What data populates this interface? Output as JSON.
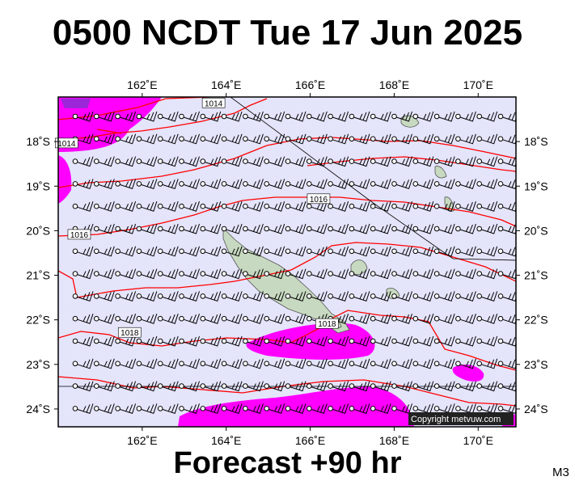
{
  "header": {
    "title": "0500 NCDT Tue 17 Jun 2025"
  },
  "footer": {
    "subtitle": "Forecast +90 hr",
    "model": "M3"
  },
  "credit": "Copyright metvuw.com",
  "map": {
    "lon_min": 160.0,
    "lon_max": 170.9,
    "lat_min": -24.4,
    "lat_max": -17.0,
    "lon_ticks": [
      {
        "value": 162,
        "label": "162˚E"
      },
      {
        "value": 164,
        "label": "164˚E"
      },
      {
        "value": 166,
        "label": "166˚E"
      },
      {
        "value": 168,
        "label": "168˚E"
      },
      {
        "value": 170,
        "label": "170˚E"
      }
    ],
    "lat_ticks": [
      {
        "value": -18,
        "label": "18˚S"
      },
      {
        "value": -19,
        "label": "19˚S"
      },
      {
        "value": -20,
        "label": "20˚S"
      },
      {
        "value": -21,
        "label": "21˚S"
      },
      {
        "value": -22,
        "label": "22˚S"
      },
      {
        "value": -23,
        "label": "23˚S"
      },
      {
        "value": -24,
        "label": "24˚S"
      }
    ],
    "colors": {
      "ocean": "#e4e4fb",
      "rain": "#ff00ff",
      "heavy_rain": "#9c27d8",
      "isobar": "#ff0000",
      "land": "#c7d9c0",
      "barb": "#000000"
    },
    "contour_labels": [
      {
        "text": "1014",
        "lon": 163.7,
        "lat": -17.15
      },
      {
        "text": "1014",
        "lon": 160.2,
        "lat": -18.05
      },
      {
        "text": "1016",
        "lon": 166.2,
        "lat": -19.3
      },
      {
        "text": "1016",
        "lon": 160.5,
        "lat": -20.1
      },
      {
        "text": "1018",
        "lon": 161.7,
        "lat": -22.3
      },
      {
        "text": "1018",
        "lon": 166.4,
        "lat": -22.1
      }
    ]
  }
}
